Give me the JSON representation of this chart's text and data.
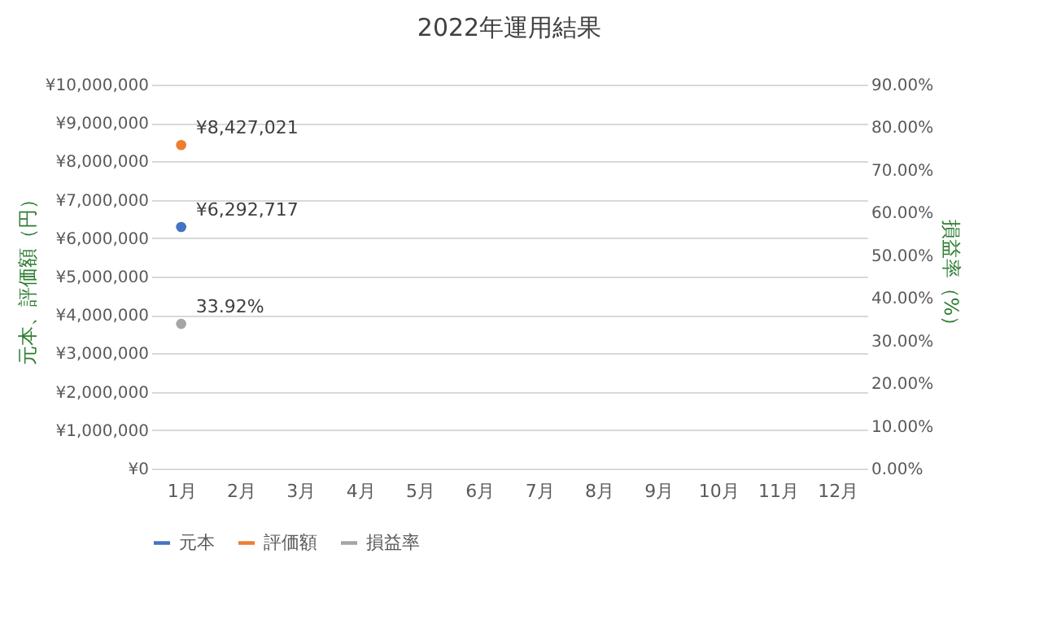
{
  "chart_data": {
    "type": "line",
    "title": "2022年運用結果",
    "categories": [
      "1月",
      "2月",
      "3月",
      "4月",
      "5月",
      "6月",
      "7月",
      "8月",
      "9月",
      "10月",
      "11月",
      "12月"
    ],
    "series": [
      {
        "name": "元本",
        "color": "#4472c4",
        "values": [
          6292717,
          null,
          null,
          null,
          null,
          null,
          null,
          null,
          null,
          null,
          null,
          null
        ],
        "value_labels": [
          "¥6,292,717",
          null,
          null,
          null,
          null,
          null,
          null,
          null,
          null,
          null,
          null,
          null
        ]
      },
      {
        "name": "評価額",
        "color": "#ed7d31",
        "values": [
          8427021,
          null,
          null,
          null,
          null,
          null,
          null,
          null,
          null,
          null,
          null,
          null
        ],
        "value_labels": [
          "¥8,427,021",
          null,
          null,
          null,
          null,
          null,
          null,
          null,
          null,
          null,
          null,
          null
        ]
      },
      {
        "name": "損益率",
        "color": "#a5a5a5",
        "axis": "y2",
        "values": [
          33.92,
          null,
          null,
          null,
          null,
          null,
          null,
          null,
          null,
          null,
          null,
          null
        ],
        "value_labels": [
          "33.92%",
          null,
          null,
          null,
          null,
          null,
          null,
          null,
          null,
          null,
          null,
          null
        ]
      }
    ],
    "ylabel": "元本、評価額（円）",
    "y2label": "損益率（%）",
    "ylim": [
      0,
      10000000
    ],
    "yticks": [
      {
        "value": 0,
        "label": "¥0"
      },
      {
        "value": 1000000,
        "label": "¥1,000,000"
      },
      {
        "value": 2000000,
        "label": "¥2,000,000"
      },
      {
        "value": 3000000,
        "label": "¥3,000,000"
      },
      {
        "value": 4000000,
        "label": "¥4,000,000"
      },
      {
        "value": 5000000,
        "label": "¥5,000,000"
      },
      {
        "value": 6000000,
        "label": "¥6,000,000"
      },
      {
        "value": 7000000,
        "label": "¥7,000,000"
      },
      {
        "value": 8000000,
        "label": "¥8,000,000"
      },
      {
        "value": 9000000,
        "label": "¥9,000,000"
      },
      {
        "value": 10000000,
        "label": "¥10,000,000"
      }
    ],
    "y2lim": [
      0,
      90
    ],
    "y2ticks": [
      {
        "value": 0,
        "label": "0.00%"
      },
      {
        "value": 10,
        "label": "10.00%"
      },
      {
        "value": 20,
        "label": "20.00%"
      },
      {
        "value": 30,
        "label": "30.00%"
      },
      {
        "value": 40,
        "label": "40.00%"
      },
      {
        "value": 50,
        "label": "50.00%"
      },
      {
        "value": 60,
        "label": "60.00%"
      },
      {
        "value": 70,
        "label": "70.00%"
      },
      {
        "value": 80,
        "label": "80.00%"
      },
      {
        "value": 90,
        "label": "90.00%"
      }
    ],
    "grid": "y",
    "legend": "bottom",
    "marker": "circle",
    "line_style": "solid"
  }
}
